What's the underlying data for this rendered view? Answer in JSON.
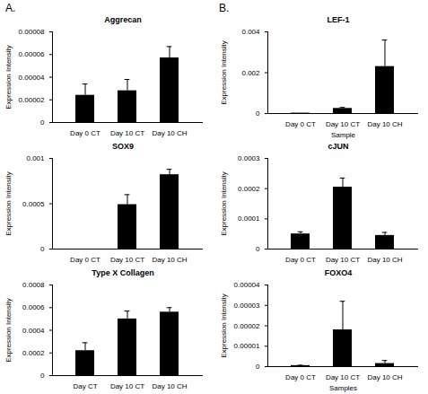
{
  "panel_labels": [
    "A.",
    "B."
  ],
  "chart_data": [
    {
      "type": "bar",
      "title": "Aggrecan",
      "ylabel": "Expression Intensity",
      "color": "#000000",
      "categories": [
        "Day 0 CT",
        "Day 10 CT",
        "Day 10 CH"
      ],
      "values": [
        2.4e-05,
        2.8e-05,
        5.7e-05
      ],
      "errors": [
        1e-05,
        1e-05,
        1e-05
      ],
      "ylim": [
        0,
        8e-05
      ],
      "yticks": [
        0,
        2e-05,
        4e-05,
        6e-05,
        8e-05
      ]
    },
    {
      "type": "bar",
      "title": "SOX9",
      "ylabel": "Expression Intensity",
      "color": "#000000",
      "categories": [
        "Day 0 CT",
        "Day 10 CT",
        "Day 10 CH"
      ],
      "values": [
        0,
        0.00049,
        0.00082
      ],
      "errors": [
        0,
        0.00011,
        6e-05
      ],
      "ylim": [
        0,
        0.001
      ],
      "yticks": [
        0,
        0.0005,
        0.001
      ]
    },
    {
      "type": "bar",
      "title": "Type X Collagen",
      "ylabel": "Expression Intensity",
      "color": "#000000",
      "categories": [
        "Day CT",
        "Day 10 CT",
        "Day 10 CH"
      ],
      "values": [
        0.00022,
        0.0005,
        0.00056
      ],
      "errors": [
        7e-05,
        7e-05,
        4e-05
      ],
      "ylim": [
        0,
        0.0008
      ],
      "yticks": [
        0,
        0.0002,
        0.0004,
        0.0006,
        0.0008
      ]
    },
    {
      "type": "bar",
      "title": "LEF-1",
      "ylabel": "Expression Intensity",
      "xlabel": "Sample",
      "color": "#000000",
      "categories": [
        "Day 0 CT",
        "Day 10 CT",
        "Day 10 CH"
      ],
      "values": [
        2e-05,
        0.00025,
        0.0023
      ],
      "errors": [
        0,
        5e-05,
        0.0013
      ],
      "ylim": [
        0,
        0.004
      ],
      "yticks": [
        0,
        0.002,
        0.004
      ]
    },
    {
      "type": "bar",
      "title": "cJUN",
      "ylabel": "Expression Intensity",
      "color": "#000000",
      "categories": [
        "Day 0 CT",
        "Day 10 CT",
        "Day 10 CH"
      ],
      "values": [
        5e-05,
        0.000205,
        4.5e-05
      ],
      "errors": [
        7e-06,
        3e-05,
        1e-05
      ],
      "ylim": [
        0,
        0.0003
      ],
      "yticks": [
        0,
        0.0001,
        0.0002,
        0.0003
      ]
    },
    {
      "type": "bar",
      "title": "FOXO4",
      "ylabel": "Expression Intensity",
      "xlabel": "Samples",
      "color": "#000000",
      "categories": [
        "Day 0 CT",
        "Day 10 CT",
        "Day 10 CH"
      ],
      "values": [
        5e-07,
        1.8e-05,
        1.5e-06
      ],
      "errors": [
        2e-07,
        1.4e-05,
        1.5e-06
      ],
      "ylim": [
        0,
        4e-05
      ],
      "yticks": [
        0,
        1e-05,
        2e-05,
        3e-05,
        4e-05
      ]
    }
  ]
}
